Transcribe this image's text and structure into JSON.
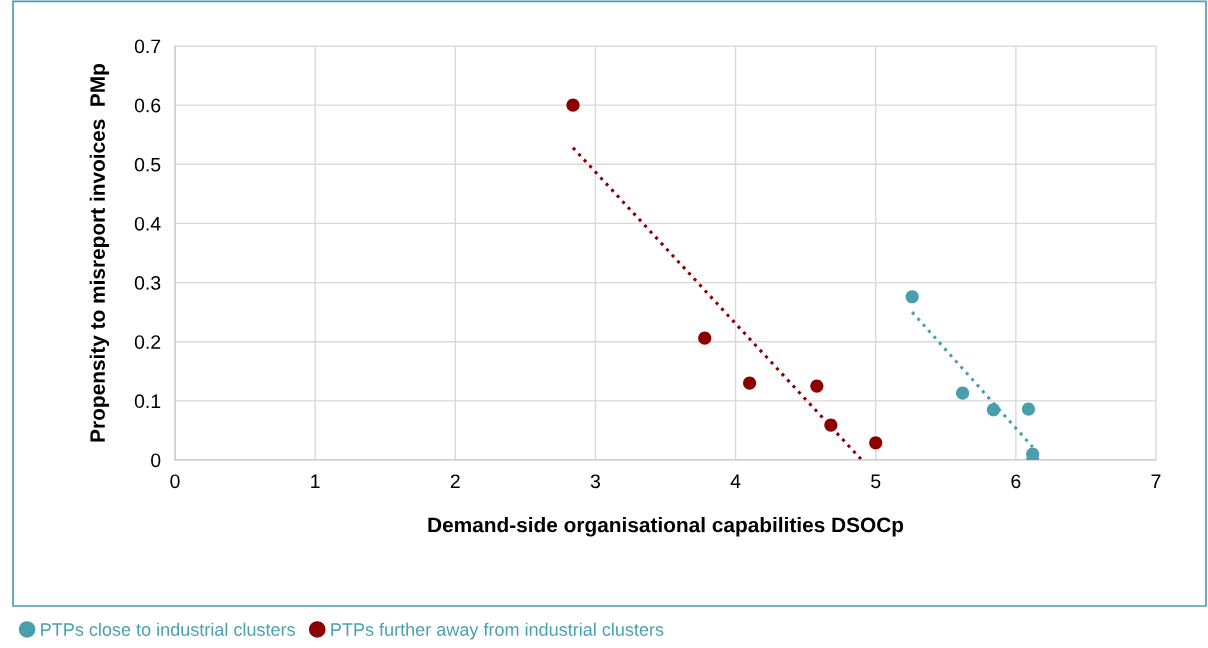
{
  "chart_data": {
    "type": "scatter",
    "xlabel": "Demand-side organisational capabilities DSOCp",
    "ylabel": "Propensity to misreport invoices  PMp",
    "xlim": [
      0,
      7
    ],
    "xticks": [
      0,
      1,
      2,
      3,
      4,
      5,
      6,
      7
    ],
    "ylim": [
      0,
      0.7
    ],
    "yticks": [
      0,
      0.1,
      0.2,
      0.3,
      0.4,
      0.5,
      0.6,
      0.7
    ],
    "grid": true,
    "legend": "bottom left",
    "marker": "circle",
    "series": [
      {
        "name": "PTPs close to industrial clusters",
        "color": "#4a9fae",
        "x": [
          5.26,
          5.62,
          5.84,
          6.09,
          6.12,
          6.12
        ],
        "values": [
          0.276,
          0.113,
          0.085,
          0.086,
          0.01,
          0.0
        ]
      },
      {
        "name": "PTPs further away from industrial clusters",
        "color": "#8b0000",
        "x": [
          2.84,
          3.78,
          4.1,
          4.58,
          4.68,
          5.0
        ],
        "values": [
          0.6,
          0.206,
          0.13,
          0.125,
          0.059,
          0.029
        ]
      },
      {
        "type": "line",
        "line_style": "dotted",
        "marker": "none",
        "color": "#4a9fae",
        "x": [
          5.26,
          6.12
        ],
        "values": [
          0.25,
          0.022
        ]
      },
      {
        "type": "line",
        "line_style": "dotted",
        "marker": "none",
        "color": "#8b0000",
        "x": [
          2.84,
          4.9
        ],
        "values": [
          0.528,
          0.0
        ]
      }
    ]
  }
}
